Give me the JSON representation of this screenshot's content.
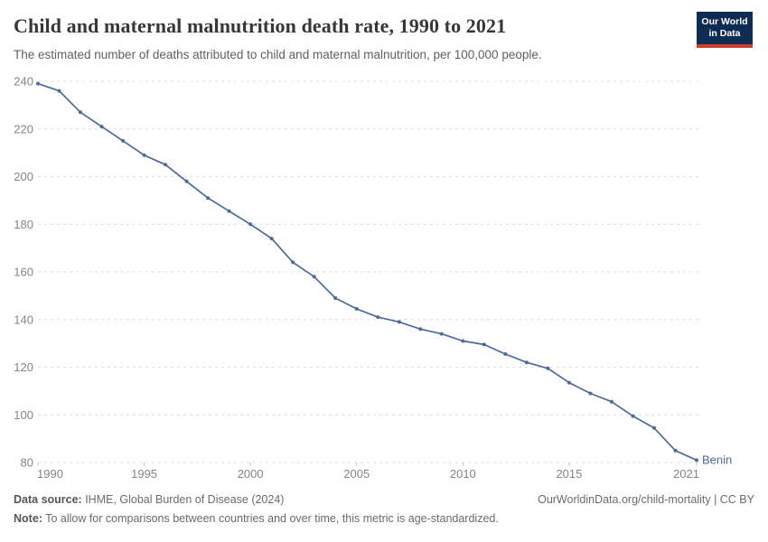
{
  "header": {
    "title": "Child and maternal malnutrition death rate, 1990 to 2021",
    "subtitle": "The estimated number of deaths attributed to child and maternal malnutrition, per 100,000 people.",
    "logo": {
      "line1": "Our World",
      "line2": "in Data"
    }
  },
  "colors": {
    "series_blue": "#4c6a9c",
    "logo_navy": "#0e2c52",
    "logo_red": "#cd3b31",
    "grid_gray": "#dcdcdc",
    "tick_gray": "#c4c4c4",
    "axis_label_gray": "#858585",
    "title_dark": "#373737"
  },
  "chart_data": {
    "type": "line",
    "title": "Child and maternal malnutrition death rate, 1990 to 2021",
    "xlabel": "",
    "ylabel": "",
    "x": [
      1990,
      1991,
      1992,
      1993,
      1994,
      1995,
      1996,
      1997,
      1998,
      1999,
      2000,
      2001,
      2002,
      2003,
      2004,
      2005,
      2006,
      2007,
      2008,
      2009,
      2010,
      2011,
      2012,
      2013,
      2014,
      2015,
      2016,
      2017,
      2018,
      2019,
      2020,
      2021
    ],
    "series": [
      {
        "name": "Benin",
        "color": "#4c6a9c",
        "values": [
          239,
          236,
          227,
          221,
          215,
          209,
          205,
          198,
          191,
          185.5,
          180,
          174,
          164,
          158,
          149,
          144.5,
          141,
          139,
          136,
          134,
          131,
          129.5,
          125.5,
          122,
          119.5,
          113.5,
          109,
          105.5,
          99.5,
          94.5,
          85,
          81
        ]
      }
    ],
    "ylim": [
      80,
      240
    ],
    "xlim": [
      1990,
      2021
    ],
    "y_ticks": [
      80,
      100,
      120,
      140,
      160,
      180,
      200,
      220,
      240
    ],
    "x_ticks": [
      1990,
      1995,
      2000,
      2005,
      2010,
      2015,
      2021
    ],
    "grid": "horizontal-dashed",
    "legend": "end-of-line-label",
    "markers": "point-per-year"
  },
  "footer": {
    "datasource_label": "Data source:",
    "datasource_text": " IHME, Global Burden of Disease (2024)",
    "note_label": "Note:",
    "note_text": " To allow for comparisons between countries and over time, this metric is age-standardized.",
    "link": "OurWorldinData.org/child-mortality | CC BY"
  }
}
